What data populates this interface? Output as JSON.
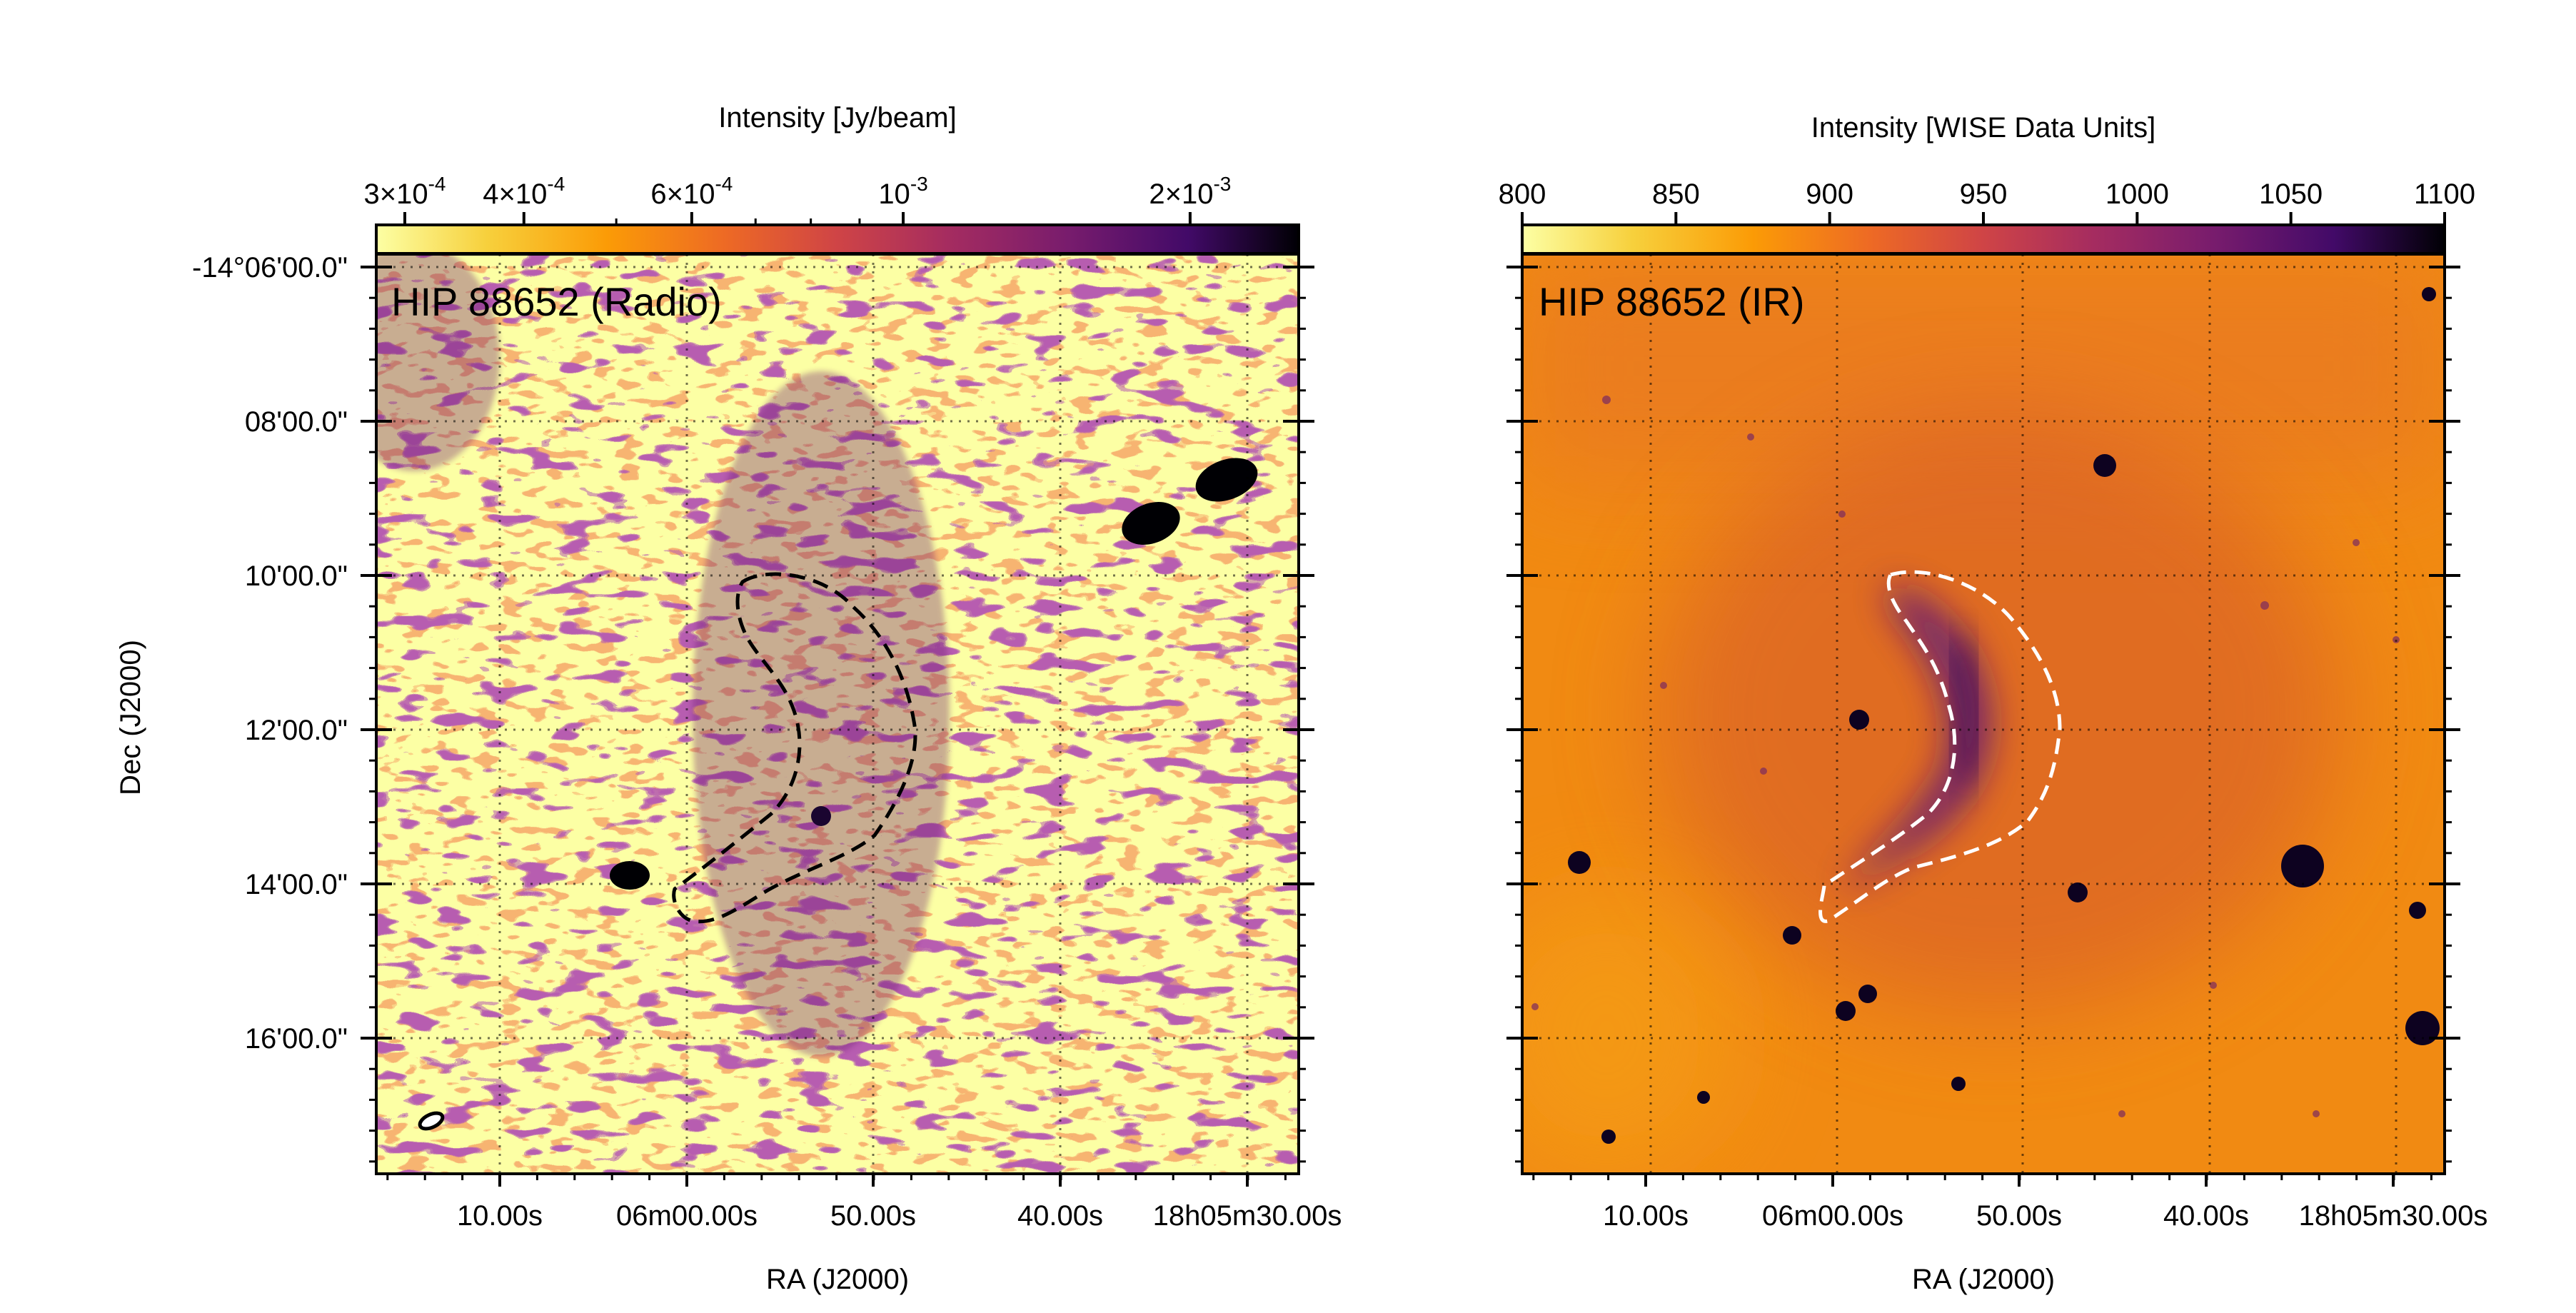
{
  "chart_data": [
    {
      "type": "heatmap",
      "title": "HIP 88652 (Radio)",
      "xlabel": "RA (J2000)",
      "ylabel": "Dec (J2000)",
      "grid": true,
      "colormap": "inferno_r",
      "colorbar": {
        "label": "Intensity [Jy/beam]",
        "scale": "log",
        "range": [
          0.00028,
          0.0026
        ],
        "ticks": [
          {
            "value": 0.0003,
            "mant": "3",
            "exp": "-4"
          },
          {
            "value": 0.0004,
            "mant": "4",
            "exp": "-4"
          },
          {
            "value": 0.0006,
            "mant": "6",
            "exp": "-4"
          },
          {
            "value": 0.001,
            "mant": "",
            "exp": "-3"
          },
          {
            "value": 0.002,
            "mant": "2",
            "exp": "-3"
          }
        ],
        "minor_ticks": [
          0.0005,
          0.0007,
          0.0008,
          0.0009
        ]
      },
      "x_ticks": [
        "10.00s",
        "06m00.00s",
        "50.00s",
        "40.00s",
        "18h05m30.00s"
      ],
      "y_ticks": [
        "-14°06'00.0\"",
        "08'00.0\"",
        "10'00.0\"",
        "12'00.0\"",
        "14'00.0\"",
        "16'00.0\""
      ],
      "contour": {
        "style": "dashed",
        "color": "#000000"
      },
      "beam": {
        "shape": "ellipse"
      }
    },
    {
      "type": "heatmap",
      "title": "HIP 88652 (IR)",
      "xlabel": "RA (J2000)",
      "grid": true,
      "colormap": "inferno_r",
      "colorbar": {
        "label": "Intensity [WISE Data Units]",
        "scale": "linear",
        "range": [
          800,
          1100
        ],
        "ticks": [
          800,
          850,
          900,
          950,
          1000,
          1050,
          1100
        ]
      },
      "x_ticks": [
        "10.00s",
        "06m00.00s",
        "50.00s",
        "40.00s",
        "18h05m30.00s"
      ],
      "contour": {
        "style": "dashed",
        "color": "#ffffff"
      }
    }
  ]
}
